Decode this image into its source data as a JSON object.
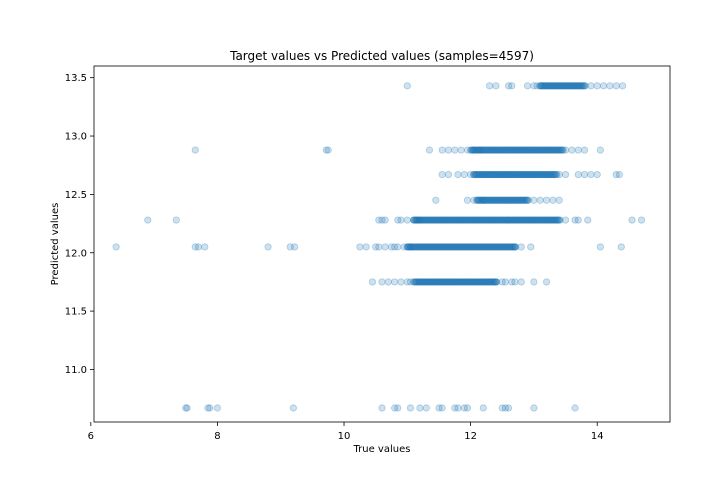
{
  "chart_data": {
    "type": "scatter",
    "title": "Target values vs Predicted values (samples=4597)",
    "xlabel": "True values",
    "ylabel": "Predicted values",
    "xlim": [
      6.05,
      15.15
    ],
    "ylim": [
      10.55,
      13.6
    ],
    "xticks": [
      {
        "value": 6,
        "label": "6"
      },
      {
        "value": 8,
        "label": "8"
      },
      {
        "value": 10,
        "label": "10"
      },
      {
        "value": 12,
        "label": "12"
      },
      {
        "value": 14,
        "label": "14"
      }
    ],
    "yticks": [
      {
        "value": 11.0,
        "label": "11.0"
      },
      {
        "value": 11.5,
        "label": "11.5"
      },
      {
        "value": 12.0,
        "label": "12.0"
      },
      {
        "value": 12.5,
        "label": "12.5"
      },
      {
        "value": 13.0,
        "label": "13.0"
      },
      {
        "value": 13.5,
        "label": "13.5"
      }
    ],
    "marker_color": "#1f77b4",
    "marker_alpha": 0.22,
    "grid": false,
    "rows": [
      {
        "y": 13.43,
        "points": [
          11.0,
          12.3,
          12.4,
          12.6,
          12.65,
          12.9,
          13.0,
          13.05,
          13.1,
          13.9,
          14.0,
          14.1,
          14.2,
          14.3,
          14.4
        ],
        "dense": [
          13.1,
          13.8
        ]
      },
      {
        "y": 12.88,
        "points": [
          7.65,
          9.72,
          9.75,
          11.35,
          11.55,
          11.65,
          11.75,
          11.85,
          11.95,
          12.05,
          12.15,
          13.5,
          13.6,
          13.7,
          13.8,
          14.05
        ],
        "dense": [
          12.0,
          13.45
        ]
      },
      {
        "y": 12.67,
        "points": [
          11.55,
          11.65,
          11.8,
          11.9,
          12.0,
          12.05,
          13.4,
          13.5,
          13.7,
          13.8,
          13.9,
          14.0,
          14.3,
          14.35
        ],
        "dense": [
          12.05,
          13.35
        ]
      },
      {
        "y": 12.45,
        "points": [
          11.45,
          11.95,
          12.05,
          12.1,
          12.2,
          13.0,
          13.1,
          13.2,
          13.3,
          13.4
        ],
        "dense": [
          12.1,
          12.9
        ]
      },
      {
        "y": 12.28,
        "points": [
          6.9,
          7.35,
          10.55,
          10.6,
          10.65,
          10.85,
          10.9,
          11.0,
          11.1,
          11.15,
          11.2,
          13.5,
          13.65,
          13.7,
          13.85,
          14.55,
          14.7
        ],
        "dense": [
          11.1,
          13.4
        ]
      },
      {
        "y": 12.05,
        "points": [
          6.4,
          7.65,
          7.7,
          7.8,
          8.8,
          9.15,
          9.22,
          10.25,
          10.35,
          10.5,
          10.55,
          10.65,
          10.75,
          10.8,
          10.85,
          10.95,
          11.0,
          11.05,
          12.7,
          12.8,
          12.95,
          14.05,
          14.38
        ],
        "dense": [
          11.0,
          12.7
        ]
      },
      {
        "y": 11.75,
        "points": [
          10.45,
          10.6,
          10.7,
          10.8,
          10.9,
          11.0,
          11.05,
          12.4,
          12.5,
          12.55,
          12.65,
          12.7,
          12.8,
          13.0,
          13.2
        ],
        "dense": [
          11.1,
          12.4
        ]
      },
      {
        "y": 10.67,
        "points": [
          7.5,
          7.52,
          7.85,
          7.88,
          8.0,
          9.2,
          10.6,
          10.8,
          10.85,
          11.05,
          11.2,
          11.3,
          11.5,
          11.55,
          11.75,
          11.8,
          11.9,
          11.95,
          12.2,
          12.5,
          12.55,
          12.6,
          13.0,
          13.65
        ],
        "dense": null
      }
    ]
  }
}
